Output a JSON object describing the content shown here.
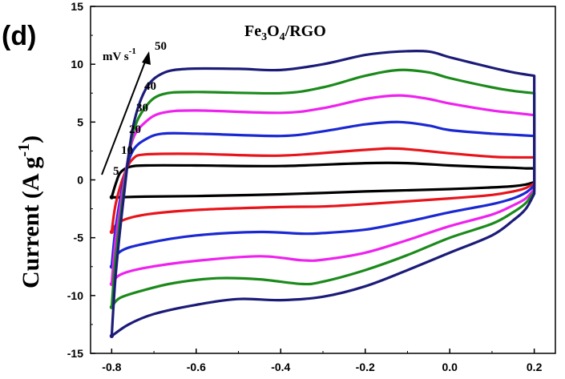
{
  "chart_data": {
    "type": "line",
    "panel_label": "(d)",
    "title": {
      "segments": [
        {
          "t": "Fe",
          "sub": false
        },
        {
          "t": "3",
          "sub": true
        },
        {
          "t": "O",
          "sub": false
        },
        {
          "t": "4",
          "sub": true
        },
        {
          "t": "/RGO",
          "sub": false
        }
      ]
    },
    "ylabel": {
      "main": "Current (A g",
      "sup": "-1",
      "close": ")"
    },
    "xlabel": "",
    "xlim": [
      -0.85,
      0.25
    ],
    "ylim": [
      -15,
      15
    ],
    "x_ticks": [
      -0.8,
      -0.6,
      -0.4,
      -0.2,
      0.0,
      0.2
    ],
    "x_tick_labels": [
      "-0.8",
      "-0.6",
      "-0.4",
      "-0.2",
      "0.0",
      "0.2"
    ],
    "y_ticks": [
      -15,
      -10,
      -5,
      0,
      5,
      10,
      15
    ],
    "y_tick_labels": [
      "-15",
      "-10",
      "-5",
      "0",
      "5",
      "10",
      "15"
    ],
    "scan_rate_unit": {
      "main": "mV s",
      "sup": "-1"
    },
    "scan_rate_labels": [
      "50",
      "40",
      "30",
      "20",
      "10",
      "5"
    ],
    "series": [
      {
        "name": "5",
        "color": "#000000",
        "upper": [
          [
            -0.8,
            -1.5
          ],
          [
            -0.79,
            -0.3
          ],
          [
            -0.78,
            0.6
          ],
          [
            -0.76,
            1.1
          ],
          [
            -0.72,
            1.25
          ],
          [
            -0.6,
            1.25
          ],
          [
            -0.4,
            1.2
          ],
          [
            -0.2,
            1.45
          ],
          [
            -0.1,
            1.45
          ],
          [
            0.0,
            1.25
          ],
          [
            0.1,
            1.1
          ],
          [
            0.15,
            1.05
          ],
          [
            0.18,
            1.0
          ],
          [
            0.2,
            1.0
          ]
        ],
        "lower": [
          [
            0.2,
            -0.2
          ],
          [
            0.18,
            -0.4
          ],
          [
            0.15,
            -0.55
          ],
          [
            0.1,
            -0.65
          ],
          [
            0.0,
            -0.8
          ],
          [
            -0.2,
            -1.0
          ],
          [
            -0.4,
            -1.25
          ],
          [
            -0.6,
            -1.4
          ],
          [
            -0.72,
            -1.45
          ],
          [
            -0.78,
            -1.5
          ],
          [
            -0.8,
            -1.5
          ]
        ]
      },
      {
        "name": "10",
        "color": "#e8141b",
        "upper": [
          [
            -0.8,
            -4.5
          ],
          [
            -0.79,
            -2.0
          ],
          [
            -0.77,
            0.5
          ],
          [
            -0.75,
            1.8
          ],
          [
            -0.72,
            2.2
          ],
          [
            -0.6,
            2.25
          ],
          [
            -0.4,
            2.1
          ],
          [
            -0.2,
            2.6
          ],
          [
            -0.12,
            2.7
          ],
          [
            0.0,
            2.3
          ],
          [
            0.1,
            2.0
          ],
          [
            0.15,
            1.95
          ],
          [
            0.2,
            1.95
          ]
        ],
        "lower": [
          [
            0.2,
            -0.3
          ],
          [
            0.18,
            -0.7
          ],
          [
            0.15,
            -1.0
          ],
          [
            0.1,
            -1.3
          ],
          [
            0.0,
            -1.6
          ],
          [
            -0.2,
            -2.1
          ],
          [
            -0.3,
            -2.3
          ],
          [
            -0.4,
            -2.35
          ],
          [
            -0.6,
            -2.6
          ],
          [
            -0.72,
            -3.0
          ],
          [
            -0.78,
            -3.6
          ],
          [
            -0.8,
            -4.5
          ]
        ]
      },
      {
        "name": "20",
        "color": "#1a28d2",
        "upper": [
          [
            -0.8,
            -7.5
          ],
          [
            -0.79,
            -4.0
          ],
          [
            -0.77,
            0.2
          ],
          [
            -0.75,
            2.5
          ],
          [
            -0.72,
            3.5
          ],
          [
            -0.68,
            4.0
          ],
          [
            -0.6,
            4.0
          ],
          [
            -0.4,
            3.8
          ],
          [
            -0.3,
            4.2
          ],
          [
            -0.2,
            4.8
          ],
          [
            -0.12,
            5.0
          ],
          [
            -0.05,
            4.7
          ],
          [
            0.0,
            4.3
          ],
          [
            0.1,
            4.0
          ],
          [
            0.15,
            3.9
          ],
          [
            0.2,
            3.8
          ]
        ],
        "lower": [
          [
            0.2,
            -0.5
          ],
          [
            0.18,
            -1.1
          ],
          [
            0.15,
            -1.6
          ],
          [
            0.1,
            -2.1
          ],
          [
            0.0,
            -2.8
          ],
          [
            -0.1,
            -3.6
          ],
          [
            -0.2,
            -4.3
          ],
          [
            -0.3,
            -4.6
          ],
          [
            -0.35,
            -4.65
          ],
          [
            -0.45,
            -4.5
          ],
          [
            -0.6,
            -4.8
          ],
          [
            -0.72,
            -5.5
          ],
          [
            -0.78,
            -6.2
          ],
          [
            -0.8,
            -7.5
          ]
        ]
      },
      {
        "name": "30",
        "color": "#ee22ee",
        "upper": [
          [
            -0.8,
            -9.0
          ],
          [
            -0.79,
            -5.0
          ],
          [
            -0.77,
            0.0
          ],
          [
            -0.75,
            3.5
          ],
          [
            -0.72,
            5.0
          ],
          [
            -0.68,
            5.8
          ],
          [
            -0.6,
            6.0
          ],
          [
            -0.4,
            5.8
          ],
          [
            -0.3,
            6.2
          ],
          [
            -0.2,
            7.0
          ],
          [
            -0.12,
            7.3
          ],
          [
            -0.05,
            7.0
          ],
          [
            0.0,
            6.6
          ],
          [
            0.1,
            6.0
          ],
          [
            0.15,
            5.8
          ],
          [
            0.2,
            5.6
          ]
        ],
        "lower": [
          [
            0.2,
            -0.8
          ],
          [
            0.18,
            -1.6
          ],
          [
            0.15,
            -2.2
          ],
          [
            0.1,
            -3.0
          ],
          [
            0.0,
            -4.0
          ],
          [
            -0.1,
            -5.2
          ],
          [
            -0.2,
            -6.3
          ],
          [
            -0.3,
            -6.9
          ],
          [
            -0.35,
            -6.95
          ],
          [
            -0.45,
            -6.6
          ],
          [
            -0.6,
            -7.0
          ],
          [
            -0.72,
            -7.6
          ],
          [
            -0.78,
            -8.2
          ],
          [
            -0.8,
            -9.0
          ]
        ]
      },
      {
        "name": "40",
        "color": "#1b8a1b",
        "upper": [
          [
            -0.8,
            -11.0
          ],
          [
            -0.79,
            -6.5
          ],
          [
            -0.77,
            -0.5
          ],
          [
            -0.75,
            4.0
          ],
          [
            -0.72,
            6.3
          ],
          [
            -0.68,
            7.4
          ],
          [
            -0.6,
            7.6
          ],
          [
            -0.4,
            7.5
          ],
          [
            -0.3,
            8.0
          ],
          [
            -0.2,
            9.0
          ],
          [
            -0.12,
            9.5
          ],
          [
            -0.05,
            9.3
          ],
          [
            0.0,
            8.8
          ],
          [
            0.1,
            8.0
          ],
          [
            0.15,
            7.7
          ],
          [
            0.2,
            7.5
          ]
        ],
        "lower": [
          [
            0.2,
            -1.0
          ],
          [
            0.18,
            -2.0
          ],
          [
            0.15,
            -2.8
          ],
          [
            0.1,
            -3.8
          ],
          [
            0.0,
            -5.0
          ],
          [
            -0.1,
            -6.5
          ],
          [
            -0.2,
            -7.8
          ],
          [
            -0.3,
            -8.8
          ],
          [
            -0.35,
            -9.0
          ],
          [
            -0.45,
            -8.6
          ],
          [
            -0.55,
            -8.5
          ],
          [
            -0.65,
            -8.9
          ],
          [
            -0.72,
            -9.5
          ],
          [
            -0.78,
            -10.2
          ],
          [
            -0.8,
            -11.0
          ]
        ]
      },
      {
        "name": "50",
        "color": "#1c1c78",
        "upper": [
          [
            -0.8,
            -13.5
          ],
          [
            -0.79,
            -8.0
          ],
          [
            -0.77,
            -1.0
          ],
          [
            -0.75,
            4.5
          ],
          [
            -0.72,
            7.8
          ],
          [
            -0.68,
            9.2
          ],
          [
            -0.62,
            9.6
          ],
          [
            -0.5,
            9.6
          ],
          [
            -0.4,
            9.5
          ],
          [
            -0.3,
            10.0
          ],
          [
            -0.2,
            10.8
          ],
          [
            -0.12,
            11.1
          ],
          [
            -0.05,
            11.1
          ],
          [
            0.0,
            10.6
          ],
          [
            0.1,
            9.7
          ],
          [
            0.15,
            9.3
          ],
          [
            0.2,
            9.0
          ]
        ],
        "lower": [
          [
            0.2,
            -1.2
          ],
          [
            0.18,
            -2.5
          ],
          [
            0.15,
            -3.5
          ],
          [
            0.1,
            -4.8
          ],
          [
            0.0,
            -6.3
          ],
          [
            -0.1,
            -7.8
          ],
          [
            -0.2,
            -9.2
          ],
          [
            -0.3,
            -10.1
          ],
          [
            -0.4,
            -10.4
          ],
          [
            -0.5,
            -10.3
          ],
          [
            -0.6,
            -10.8
          ],
          [
            -0.7,
            -11.6
          ],
          [
            -0.76,
            -12.5
          ],
          [
            -0.8,
            -13.5
          ]
        ]
      }
    ]
  }
}
